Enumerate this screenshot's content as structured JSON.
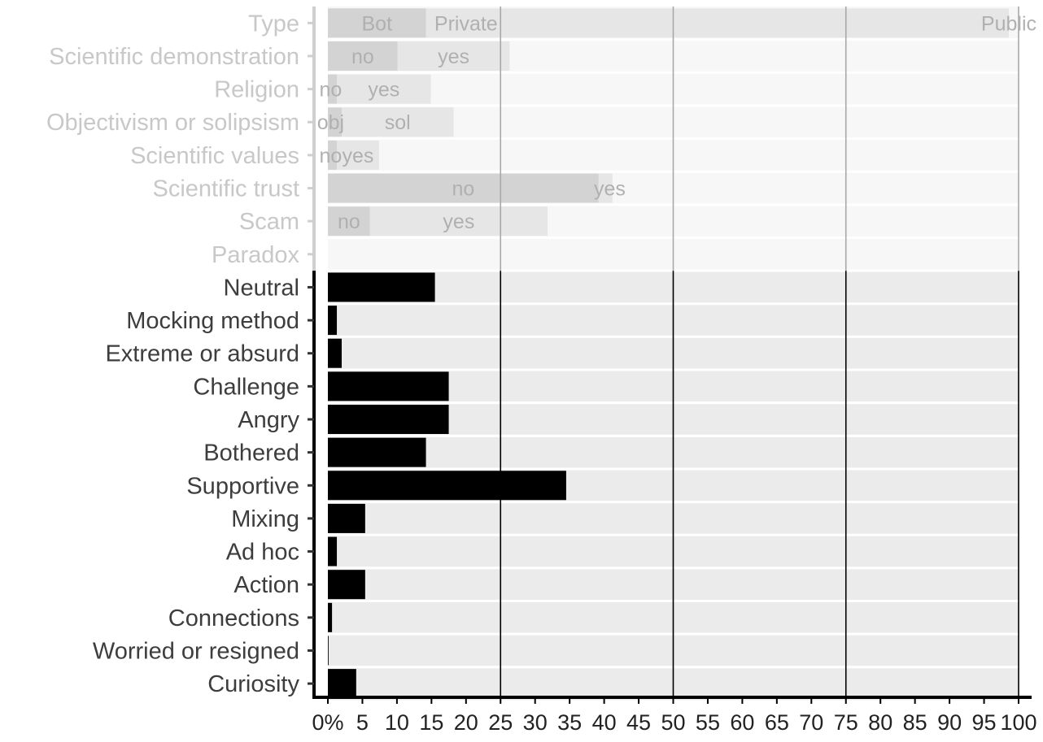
{
  "chart_data": {
    "type": "bar",
    "orientation": "horizontal",
    "title": "",
    "xlabel": "",
    "ylabel": "",
    "xlim": [
      0,
      100
    ],
    "x_ticks": [
      0,
      5,
      10,
      15,
      20,
      25,
      30,
      35,
      40,
      45,
      50,
      55,
      60,
      65,
      70,
      75,
      80,
      85,
      90,
      95,
      100
    ],
    "x_tick_labels": [
      "0%",
      "5",
      "10",
      "15",
      "20",
      "25",
      "30",
      "35",
      "40",
      "45",
      "50",
      "55",
      "60",
      "65",
      "70",
      "75",
      "80",
      "85",
      "90",
      "95",
      "100"
    ],
    "vertical_reference_lines": [
      25,
      50,
      75,
      100
    ],
    "grid": false,
    "faded_categories": [
      {
        "label": "Type",
        "segments": [
          {
            "label": "Bot",
            "start": 0,
            "end": 14.2
          },
          {
            "label": "Private",
            "start": 14.2,
            "end": 98.6
          },
          {
            "label": "Public",
            "start": 98.6,
            "end": 98.6
          }
        ]
      },
      {
        "label": "Scientific demonstration",
        "segments": [
          {
            "label": "no",
            "start": 0,
            "end": 10.1
          },
          {
            "label": "yes",
            "start": 10.1,
            "end": 26.3
          }
        ]
      },
      {
        "label": "Religion",
        "segments": [
          {
            "label": "no",
            "start": 0,
            "end": 1.3
          },
          {
            "label": "yes",
            "start": 1.3,
            "end": 14.9
          }
        ]
      },
      {
        "label": "Objectivism or solipsism",
        "segments": [
          {
            "label": "obj",
            "start": 0,
            "end": 2.0
          },
          {
            "label": "sol",
            "start": 2.0,
            "end": 18.2
          }
        ]
      },
      {
        "label": "Scientific values",
        "segments": [
          {
            "label": "no",
            "start": 0,
            "end": 1.3
          },
          {
            "label": "yes",
            "start": 1.3,
            "end": 7.4
          }
        ]
      },
      {
        "label": "Scientific trust",
        "segments": [
          {
            "label": "no",
            "start": 0,
            "end": 39.2
          },
          {
            "label": "yes",
            "start": 39.2,
            "end": 41.2
          }
        ]
      },
      {
        "label": "Scam",
        "segments": [
          {
            "label": "no",
            "start": 0,
            "end": 6.1
          },
          {
            "label": "yes",
            "start": 6.1,
            "end": 31.8
          }
        ]
      },
      {
        "label": "Paradox",
        "segments": []
      }
    ],
    "categories": [
      "Neutral",
      "Mocking method",
      "Extreme or absurd",
      "Challenge",
      "Angry",
      "Bothered",
      "Supportive",
      "Mixing",
      "Ad hoc",
      "Action",
      "Connections",
      "Worried or resigned",
      "Curiosity"
    ],
    "values": [
      15.5,
      1.3,
      2.0,
      17.5,
      17.5,
      14.2,
      34.5,
      5.4,
      1.3,
      5.4,
      0.6,
      0.1,
      4.1
    ],
    "colors": {
      "bar": "#000000",
      "active_panel_bg": "#ebebeb",
      "faded_panel_bg": "#f7f7f7",
      "faded_segment_dark": "#d3d3d3",
      "faded_segment_light": "#e6e6e6",
      "faded_text": "#c8c8c8",
      "active_text": "#3d3d3d",
      "reference_line": "#000000"
    }
  }
}
